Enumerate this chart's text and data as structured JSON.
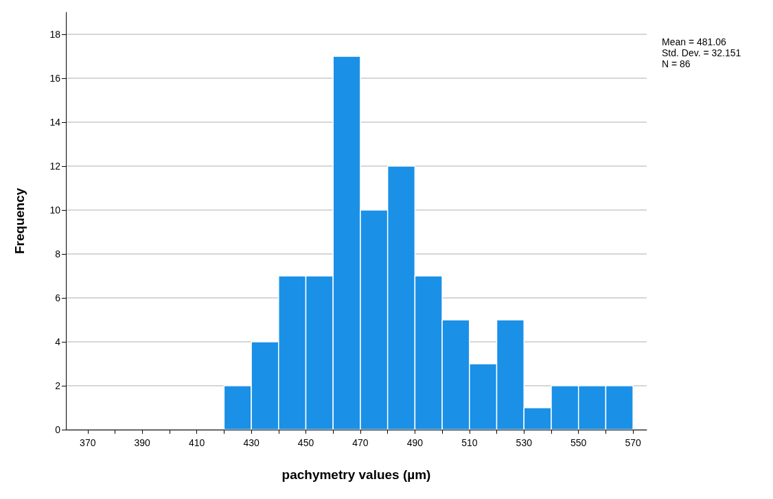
{
  "chart_data": {
    "type": "histogram",
    "xlabel": "pachymetry values (µm)",
    "ylabel": "Frequency",
    "bins": [
      420,
      430,
      440,
      450,
      460,
      470,
      480,
      490,
      500,
      510,
      520,
      530,
      540,
      550,
      560,
      570
    ],
    "values": [
      2,
      4,
      7,
      7,
      17,
      10,
      12,
      7,
      5,
      3,
      5,
      1,
      2,
      2,
      2
    ],
    "color": "#1a90e6",
    "xlim": [
      362,
      575
    ],
    "xticks": [
      370,
      {
        "value": 380,
        "label": null
      },
      390,
      {
        "value": 400,
        "label": null
      },
      410,
      {
        "value": 420,
        "label": null
      },
      430,
      {
        "value": 440,
        "label": null
      },
      450,
      {
        "value": 460,
        "label": null
      },
      470,
      {
        "value": 480,
        "label": null
      },
      490,
      {
        "value": 500,
        "label": null
      },
      510,
      {
        "value": 520,
        "label": null
      },
      530,
      {
        "value": 540,
        "label": null
      },
      550,
      {
        "value": 560,
        "label": null
      },
      570
    ],
    "ylim": [
      0,
      19
    ],
    "yticks": [
      0,
      2,
      4,
      6,
      8,
      10,
      12,
      14,
      16,
      18
    ],
    "grid": "y",
    "annotations": [
      "Mean = 481.06",
      "Std. Dev. = 32.151",
      "N = 86"
    ]
  }
}
